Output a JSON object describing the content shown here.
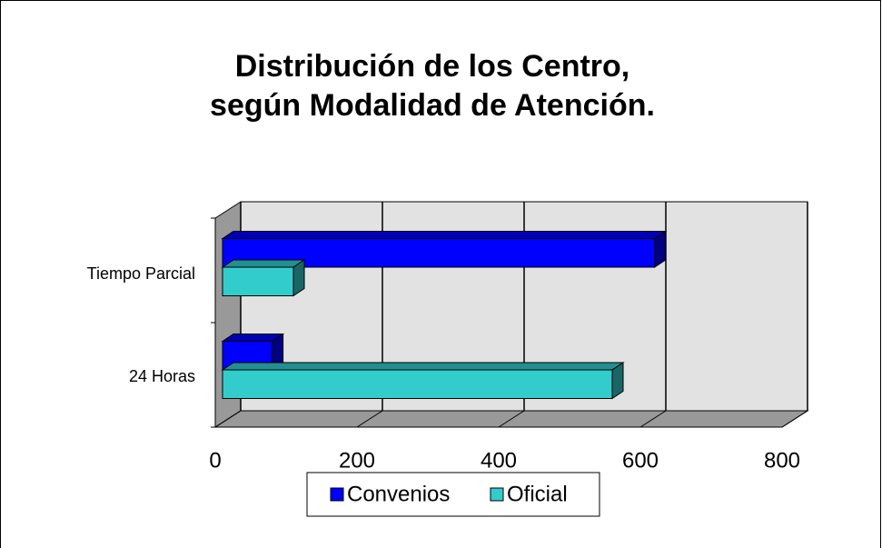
{
  "chart_data": {
    "type": "bar3d_horizontal",
    "title": [
      "Distribución de los Centro,",
      "según Modalidad de Atención."
    ],
    "categories": [
      "24 Horas",
      "Tiempo Parcial"
    ],
    "series": [
      {
        "name": "Convenios",
        "color": "#0000ff",
        "values": [
          70,
          610
        ]
      },
      {
        "name": "Oficial",
        "color": "#33cccc",
        "values": [
          550,
          100
        ]
      }
    ],
    "xlim": [
      0,
      800
    ],
    "xticks": [
      0,
      200,
      400,
      600,
      800
    ],
    "grid": true,
    "legend": "bottom"
  }
}
